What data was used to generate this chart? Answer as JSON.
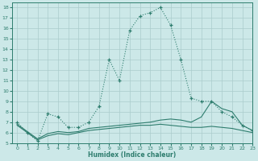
{
  "xlabel": "Humidex (Indice chaleur)",
  "background_color": "#cce8e8",
  "grid_color": "#aacccc",
  "line_color": "#2e7d6e",
  "xlim": [
    -0.5,
    23
  ],
  "ylim": [
    5,
    18.5
  ],
  "xticks": [
    0,
    1,
    2,
    3,
    4,
    5,
    6,
    7,
    8,
    9,
    10,
    11,
    12,
    13,
    14,
    15,
    16,
    17,
    18,
    19,
    20,
    21,
    22,
    23
  ],
  "yticks": [
    5,
    6,
    7,
    8,
    9,
    10,
    11,
    12,
    13,
    14,
    15,
    16,
    17,
    18
  ],
  "line1_x": [
    0,
    1,
    2,
    3,
    4,
    5,
    6,
    7,
    8,
    9,
    10,
    11,
    12,
    13,
    14,
    15,
    16,
    17,
    18,
    19,
    20,
    21,
    22,
    23
  ],
  "line1_y": [
    7.0,
    6.0,
    5.2,
    7.8,
    7.5,
    6.5,
    6.5,
    7.0,
    8.5,
    13.0,
    11.0,
    15.8,
    17.2,
    17.5,
    18.0,
    16.3,
    13.0,
    9.3,
    9.0,
    9.0,
    8.0,
    7.5,
    6.7,
    6.2
  ],
  "line2_x": [
    0,
    1,
    2,
    3,
    4,
    5,
    6,
    7,
    8,
    9,
    10,
    11,
    12,
    13,
    14,
    15,
    16,
    17,
    18,
    19,
    20,
    21,
    22,
    23
  ],
  "line2_y": [
    6.8,
    6.1,
    5.4,
    5.9,
    6.1,
    6.0,
    6.1,
    6.4,
    6.5,
    6.6,
    6.7,
    6.8,
    6.9,
    7.0,
    7.2,
    7.3,
    7.2,
    7.0,
    7.5,
    9.0,
    8.3,
    8.0,
    6.7,
    6.2
  ],
  "line3_x": [
    0,
    1,
    2,
    3,
    4,
    5,
    6,
    7,
    8,
    9,
    10,
    11,
    12,
    13,
    14,
    15,
    16,
    17,
    18,
    19,
    20,
    21,
    22,
    23
  ],
  "line3_y": [
    6.7,
    6.0,
    5.3,
    5.7,
    5.9,
    5.8,
    6.0,
    6.2,
    6.3,
    6.4,
    6.5,
    6.6,
    6.7,
    6.7,
    6.8,
    6.7,
    6.6,
    6.5,
    6.5,
    6.6,
    6.5,
    6.4,
    6.2,
    6.0
  ]
}
